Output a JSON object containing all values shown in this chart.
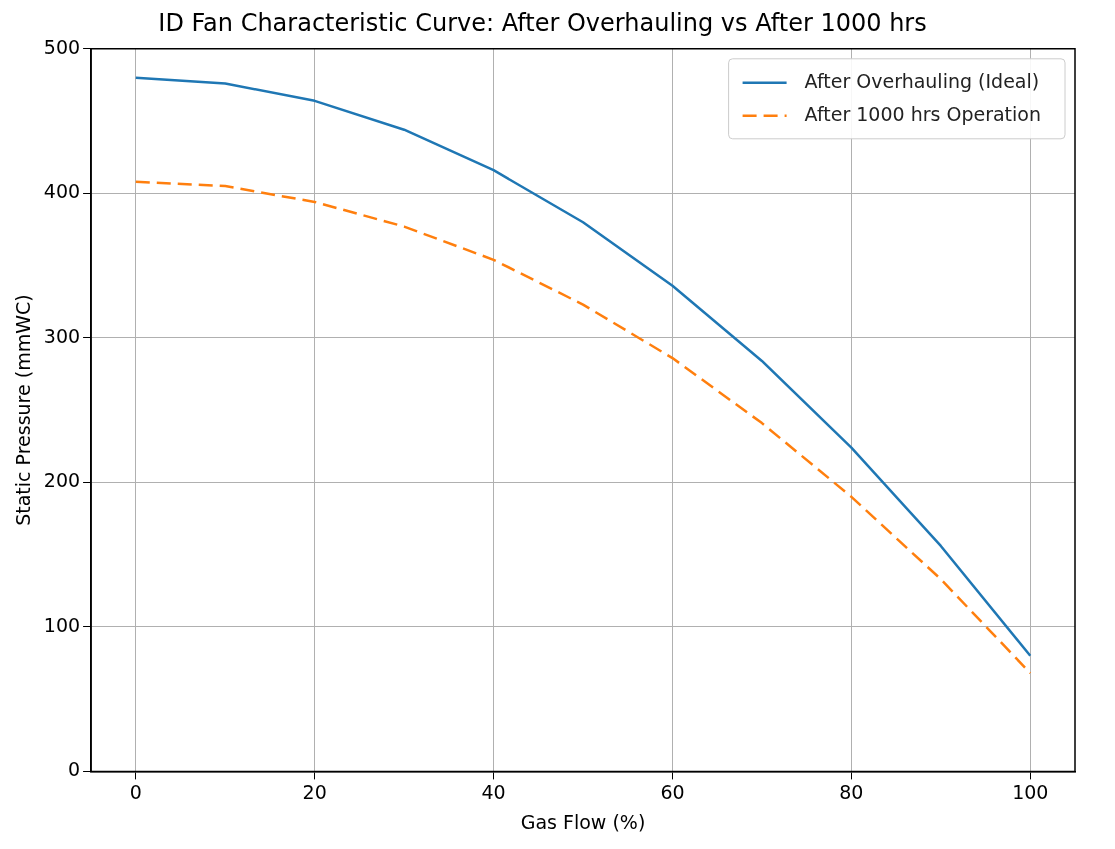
{
  "chart_data": {
    "type": "line",
    "title": "ID Fan Characteristic Curve: After Overhauling vs After 1000 hrs",
    "xlabel": "Gas Flow (%)",
    "ylabel": "Static Pressure (mmWC)",
    "x": [
      0,
      10,
      20,
      30,
      40,
      50,
      60,
      70,
      80,
      90,
      100
    ],
    "series": [
      {
        "name": "After Overhauling (Ideal)",
        "color": "#1f77b4",
        "line_style": "solid",
        "values": [
          480,
          476,
          464,
          444,
          416,
          380,
          336,
          284,
          224,
          156,
          80
        ]
      },
      {
        "name": "After 1000 hrs Operation",
        "color": "#ff7f0e",
        "line_style": "dashed",
        "values": [
          408,
          405,
          394,
          377,
          354,
          323,
          286,
          241,
          190,
          133,
          68
        ]
      }
    ],
    "xlim": [
      -5,
      105
    ],
    "xticks": [
      0,
      20,
      40,
      60,
      80,
      100
    ],
    "ylim": [
      0,
      500
    ],
    "yticks": [
      0,
      100,
      200,
      300,
      400,
      500
    ],
    "grid": true,
    "legend": "top right",
    "marker": "none"
  }
}
